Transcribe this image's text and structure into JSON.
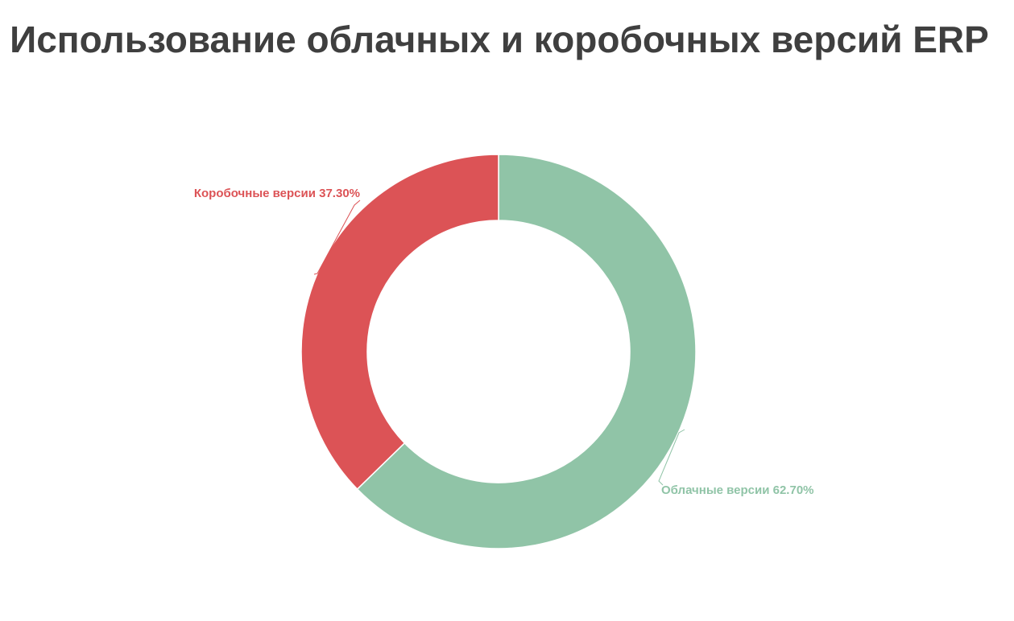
{
  "chart_data": {
    "type": "pie",
    "title": "Использование облачных и коробочных версий ERP",
    "donut": true,
    "slices": [
      {
        "label": "Облачные версии",
        "value": 62.7,
        "display": "Облачные версии 62.70%",
        "color": "#90c4a7"
      },
      {
        "label": "Коробочные версии",
        "value": 37.3,
        "display": "Коробочные версии 37.30%",
        "color": "#dc5356"
      }
    ],
    "legend": "none"
  }
}
